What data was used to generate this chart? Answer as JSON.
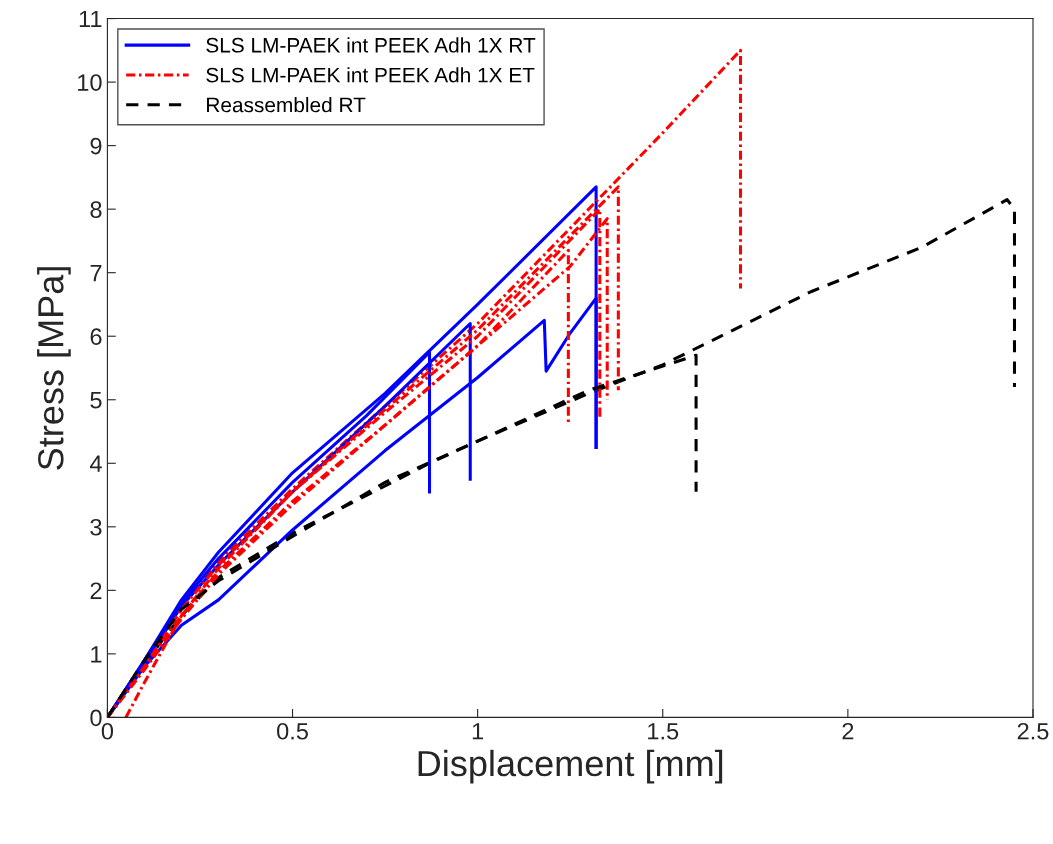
{
  "chart_data": {
    "type": "line",
    "xlabel": "Displacement [mm]",
    "ylabel": "Stress [MPa]",
    "xlim": [
      0,
      2.5
    ],
    "ylim": [
      0,
      11
    ],
    "xticks": [
      0,
      0.5,
      1,
      1.5,
      2,
      2.5
    ],
    "yticks": [
      0,
      1,
      2,
      3,
      4,
      5,
      6,
      7,
      8,
      9,
      10,
      11
    ],
    "grid": false,
    "legend": "top left",
    "marker": "none",
    "series": [
      {
        "name": "SLS LM-PAEK int PEEK Adh 1X RT",
        "color": "#0000ff",
        "line_style": "solid",
        "x": [
          0,
          0.1,
          0.2,
          0.3,
          0.5,
          0.75,
          1.0,
          1.32,
          1.32
        ],
        "values": [
          0,
          0.9,
          1.85,
          2.6,
          3.85,
          5.1,
          6.5,
          8.35,
          4.25
        ]
      },
      {
        "name": "SLS LM-PAEK int PEEK Adh 1X ET",
        "color": "#ff0000",
        "line_style": "dashdot",
        "x": [
          0,
          0.1,
          0.2,
          0.3,
          0.5,
          0.75,
          1.0,
          1.3,
          1.5,
          1.71,
          1.71
        ],
        "values": [
          0,
          0.85,
          1.75,
          2.45,
          3.6,
          4.9,
          6.2,
          8.0,
          9.2,
          10.5,
          6.75
        ]
      },
      {
        "name": "Reassembled RT",
        "color": "#000000",
        "line_style": "dashed",
        "x": [
          0,
          0.1,
          0.2,
          0.3,
          0.5,
          0.87,
          1.0,
          1.3,
          1.5,
          1.9,
          2.2,
          2.43,
          2.45,
          2.45
        ],
        "values": [
          0,
          0.85,
          1.6,
          2.2,
          2.9,
          4.0,
          4.35,
          5.1,
          5.55,
          6.7,
          7.4,
          8.15,
          8.0,
          5.2
        ]
      },
      {
        "color": "#0000ff",
        "line_style": "solid",
        "x": [
          0,
          0.1,
          0.2,
          0.3,
          0.5,
          0.7,
          0.87,
          0.87
        ],
        "values": [
          0,
          0.9,
          1.8,
          2.5,
          3.7,
          4.75,
          5.75,
          3.55
        ]
      },
      {
        "color": "#0000ff",
        "line_style": "solid",
        "x": [
          0,
          0.1,
          0.2,
          0.3,
          0.5,
          0.75,
          0.98,
          0.98
        ],
        "values": [
          0,
          0.85,
          1.75,
          2.4,
          3.55,
          4.9,
          6.2,
          3.75
        ]
      },
      {
        "color": "#0000ff",
        "line_style": "solid",
        "x": [
          0,
          0.1,
          0.2,
          0.3,
          0.5,
          0.75,
          1.0,
          1.18,
          1.185,
          1.25,
          1.32,
          1.32
        ],
        "values": [
          0,
          0.8,
          1.45,
          1.85,
          2.95,
          4.2,
          5.35,
          6.25,
          5.45,
          6.05,
          6.6,
          4.25
        ]
      },
      {
        "color": "#ff0000",
        "line_style": "dashdot",
        "x": [
          0.05,
          0.1,
          0.2,
          0.3,
          0.5,
          0.75,
          1.0,
          1.38,
          1.38
        ],
        "values": [
          0,
          0.55,
          1.6,
          2.35,
          3.55,
          4.85,
          6.1,
          8.35,
          5.15
        ]
      },
      {
        "color": "#ff0000",
        "line_style": "dashdot",
        "x": [
          0,
          0.1,
          0.2,
          0.3,
          0.5,
          0.75,
          1.0,
          1.25,
          1.35,
          1.35
        ],
        "values": [
          0,
          0.8,
          1.6,
          2.3,
          3.4,
          4.6,
          5.85,
          7.1,
          7.85,
          5.0
        ]
      },
      {
        "color": "#ff0000",
        "line_style": "dashdot",
        "x": [
          0,
          0.1,
          0.2,
          0.3,
          0.5,
          0.75,
          1.0,
          1.245,
          1.245
        ],
        "values": [
          0,
          0.75,
          1.55,
          2.25,
          3.35,
          4.6,
          5.85,
          7.35,
          4.6
        ]
      },
      {
        "color": "#ff0000",
        "line_style": "dashdot",
        "x": [
          0,
          0.1,
          0.2,
          0.3,
          0.5,
          0.75,
          1.0,
          1.33,
          1.33
        ],
        "values": [
          0,
          0.8,
          1.7,
          2.4,
          3.55,
          4.8,
          6.0,
          8.0,
          4.7
        ]
      },
      {
        "color": "#000000",
        "line_style": "dashed",
        "x": [
          0,
          0.1,
          0.2,
          0.3,
          0.5,
          0.75,
          1.0,
          1.3,
          1.59,
          1.59
        ],
        "values": [
          0,
          0.9,
          1.7,
          2.15,
          2.85,
          3.7,
          4.35,
          5.15,
          5.7,
          3.55
        ]
      }
    ]
  }
}
